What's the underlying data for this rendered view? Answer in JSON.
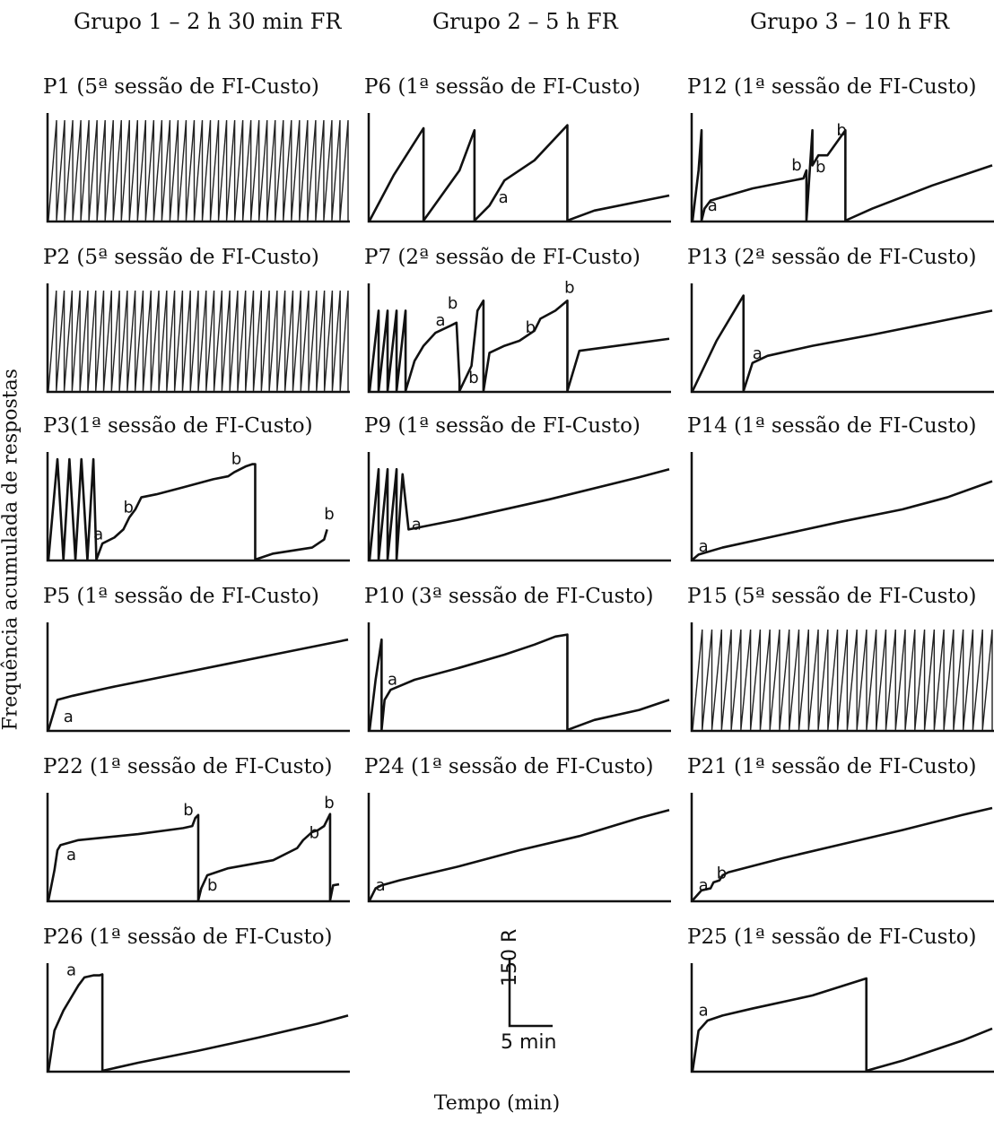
{
  "columns": [
    "Grupo 1 – 2 h 30 min FR",
    "Grupo 2 – 5 h FR",
    "Grupo 3 – 10 h FR"
  ],
  "ylabel": "Frequência acumulada de respostas",
  "xlabel": "Tempo (min)",
  "scale": {
    "response_label": "150 R",
    "time_label": "5 min"
  },
  "chart_data": [
    {
      "type": "line",
      "title": "P1 (5ª sessão de FI-Custo)",
      "column": 0,
      "row": 0,
      "pattern": "dense",
      "resets": 37
    },
    {
      "type": "line",
      "title": "P2 (5ª sessão de FI-Custo)",
      "column": 0,
      "row": 1,
      "pattern": "dense",
      "resets": 38
    },
    {
      "type": "line",
      "title": "P3(1ª sessão de FI-Custo)",
      "column": 0,
      "row": 2,
      "pattern": "mixed",
      "x": [
        0,
        0.03,
        0.05,
        0.07,
        0.09,
        0.11,
        0.13,
        0.15,
        0.16,
        0.18,
        0.22,
        0.25,
        0.27,
        0.29,
        0.31,
        0.36,
        0.45,
        0.55,
        0.6,
        0.62,
        0.66,
        0.68,
        0.69,
        0.69,
        0.75,
        0.88,
        0.92,
        0.93
      ],
      "y": [
        0,
        1,
        0,
        1,
        0,
        1,
        0,
        1,
        0,
        0.16,
        0.22,
        0.3,
        0.42,
        0.5,
        0.62,
        0.65,
        0.72,
        0.8,
        0.83,
        0.87,
        0.93,
        0.95,
        0.95,
        0,
        0.06,
        0.12,
        0.2,
        0.3
      ],
      "annotations": [
        {
          "text": "a",
          "x": 0.15,
          "y": 0.2
        },
        {
          "text": "b",
          "x": 0.25,
          "y": 0.47
        },
        {
          "text": "b",
          "x": 0.61,
          "y": 0.95
        },
        {
          "text": "b",
          "x": 0.92,
          "y": 0.4
        }
      ]
    },
    {
      "type": "line",
      "title": "P5 (1ª sessão de FI-Custo)",
      "column": 0,
      "row": 3,
      "pattern": "curve",
      "x": [
        0,
        0.01,
        0.02,
        0.03,
        0.08,
        0.2,
        0.4,
        0.6,
        0.8,
        1
      ],
      "y": [
        0,
        0.1,
        0.2,
        0.3,
        0.34,
        0.42,
        0.54,
        0.66,
        0.78,
        0.9
      ],
      "annotations": [
        {
          "text": "a",
          "x": 0.05,
          "y": 0.08
        }
      ]
    },
    {
      "type": "line",
      "title": "P22 (1ª sessão de FI-Custo)",
      "column": 0,
      "row": 4,
      "pattern": "mixed",
      "x": [
        0,
        0.02,
        0.03,
        0.04,
        0.1,
        0.3,
        0.45,
        0.48,
        0.49,
        0.5,
        0.5,
        0.51,
        0.53,
        0.6,
        0.75,
        0.83,
        0.85,
        0.88,
        0.9,
        0.92,
        0.94,
        0.94,
        0.95,
        0.97
      ],
      "y": [
        0,
        0.3,
        0.5,
        0.55,
        0.6,
        0.66,
        0.72,
        0.74,
        0.82,
        0.85,
        0,
        0.12,
        0.25,
        0.32,
        0.4,
        0.52,
        0.6,
        0.68,
        0.7,
        0.74,
        0.86,
        0,
        0.15,
        0.16
      ],
      "annotations": [
        {
          "text": "a",
          "x": 0.06,
          "y": 0.4
        },
        {
          "text": "b",
          "x": 0.45,
          "y": 0.85
        },
        {
          "text": "b",
          "x": 0.53,
          "y": 0.1
        },
        {
          "text": "b",
          "x": 0.87,
          "y": 0.62
        },
        {
          "text": "b",
          "x": 0.92,
          "y": 0.92
        }
      ]
    },
    {
      "type": "line",
      "title": "P26 (1ª sessão de FI-Custo)",
      "column": 0,
      "row": 5,
      "pattern": "mixed",
      "x": [
        0,
        0.02,
        0.05,
        0.08,
        0.1,
        0.12,
        0.15,
        0.17,
        0.18,
        0.18,
        0.3,
        0.5,
        0.7,
        0.9,
        1
      ],
      "y": [
        0,
        0.4,
        0.6,
        0.75,
        0.85,
        0.93,
        0.95,
        0.95,
        0.96,
        0,
        0.08,
        0.2,
        0.33,
        0.47,
        0.55
      ],
      "annotations": [
        {
          "text": "a",
          "x": 0.06,
          "y": 0.95
        }
      ]
    },
    {
      "type": "line",
      "title": "P6 (1ª sessão de FI-Custo)",
      "column": 1,
      "row": 0,
      "pattern": "mixed",
      "x": [
        0,
        0.08,
        0.18,
        0.18,
        0.3,
        0.35,
        0.35,
        0.4,
        0.45,
        0.55,
        0.66,
        0.66,
        0.75,
        1
      ],
      "y": [
        0,
        0.45,
        0.92,
        0,
        0.5,
        0.9,
        0,
        0.15,
        0.4,
        0.6,
        0.95,
        0,
        0.1,
        0.25
      ],
      "annotations": [
        {
          "text": "a",
          "x": 0.43,
          "y": 0.18
        }
      ]
    },
    {
      "type": "line",
      "title": "P7 (2ª sessão de FI-Custo)",
      "column": 1,
      "row": 1,
      "pattern": "mixed",
      "x": [
        0,
        0.03,
        0.03,
        0.06,
        0.06,
        0.09,
        0.09,
        0.12,
        0.12,
        0.15,
        0.18,
        0.22,
        0.27,
        0.29,
        0.3,
        0.3,
        0.34,
        0.36,
        0.38,
        0.38,
        0.4,
        0.45,
        0.5,
        0.55,
        0.57,
        0.62,
        0.66,
        0.66,
        0.7,
        1
      ],
      "y": [
        0,
        0.8,
        0,
        0.8,
        0,
        0.8,
        0,
        0.8,
        0,
        0.3,
        0.45,
        0.58,
        0.65,
        0.68,
        0.1,
        0,
        0.25,
        0.8,
        0.9,
        0,
        0.38,
        0.45,
        0.5,
        0.6,
        0.72,
        0.8,
        0.9,
        0,
        0.4,
        0.52
      ],
      "annotations": [
        {
          "text": "a",
          "x": 0.22,
          "y": 0.65
        },
        {
          "text": "b",
          "x": 0.26,
          "y": 0.82
        },
        {
          "text": "b",
          "x": 0.33,
          "y": 0.08
        },
        {
          "text": "b",
          "x": 0.52,
          "y": 0.58
        },
        {
          "text": "b",
          "x": 0.65,
          "y": 0.98
        }
      ]
    },
    {
      "type": "line",
      "title": "P9 (1ª sessão de FI-Custo)",
      "column": 1,
      "row": 2,
      "pattern": "mixed",
      "x": [
        0,
        0.03,
        0.03,
        0.06,
        0.06,
        0.09,
        0.09,
        0.11,
        0.13,
        0.3,
        0.6,
        0.9,
        1
      ],
      "y": [
        0,
        0.9,
        0,
        0.9,
        0,
        0.9,
        0,
        0.85,
        0.3,
        0.4,
        0.6,
        0.82,
        0.9
      ],
      "annotations": [
        {
          "text": "a",
          "x": 0.14,
          "y": 0.3
        }
      ]
    },
    {
      "type": "line",
      "title": "P10 (3ª sessão de FI-Custo)",
      "column": 1,
      "row": 3,
      "pattern": "mixed",
      "x": [
        0,
        0.02,
        0.04,
        0.04,
        0.05,
        0.07,
        0.15,
        0.3,
        0.45,
        0.55,
        0.62,
        0.66,
        0.66,
        0.75,
        0.9,
        1
      ],
      "y": [
        0,
        0.5,
        0.9,
        0,
        0.3,
        0.4,
        0.5,
        0.62,
        0.75,
        0.85,
        0.93,
        0.95,
        0,
        0.1,
        0.2,
        0.3
      ],
      "annotations": [
        {
          "text": "a",
          "x": 0.06,
          "y": 0.45
        }
      ]
    },
    {
      "type": "line",
      "title": "P24 (1ª sessão de FI-Custo)",
      "column": 1,
      "row": 4,
      "pattern": "curve",
      "x": [
        0,
        0.02,
        0.04,
        0.1,
        0.3,
        0.5,
        0.7,
        0.9,
        1
      ],
      "y": [
        0,
        0.12,
        0.15,
        0.2,
        0.34,
        0.5,
        0.64,
        0.82,
        0.9
      ],
      "annotations": [
        {
          "text": "a",
          "x": 0.02,
          "y": 0.1
        }
      ]
    },
    {
      "type": "line",
      "title": "P12 (1ª sessão de FI-Custo)",
      "column": 2,
      "row": 0,
      "pattern": "mixed",
      "x": [
        0,
        0.02,
        0.03,
        0.03,
        0.04,
        0.06,
        0.2,
        0.37,
        0.38,
        0.38,
        0.4,
        0.4,
        0.42,
        0.45,
        0.51,
        0.51,
        0.6,
        0.8,
        1
      ],
      "y": [
        0,
        0.5,
        0.9,
        0,
        0.12,
        0.2,
        0.32,
        0.42,
        0.5,
        0,
        0.9,
        0.55,
        0.65,
        0.65,
        0.9,
        0,
        0.12,
        0.35,
        0.55
      ],
      "annotations": [
        {
          "text": "a",
          "x": 0.05,
          "y": 0.1
        },
        {
          "text": "b",
          "x": 0.33,
          "y": 0.5
        },
        {
          "text": "b",
          "x": 0.41,
          "y": 0.48
        },
        {
          "text": "b",
          "x": 0.48,
          "y": 0.85
        }
      ]
    },
    {
      "type": "line",
      "title": "P13 (2ª sessão de FI-Custo)",
      "column": 2,
      "row": 1,
      "pattern": "mixed",
      "x": [
        0,
        0.08,
        0.17,
        0.17,
        0.2,
        0.25,
        0.4,
        0.6,
        0.8,
        1
      ],
      "y": [
        0,
        0.5,
        0.95,
        0,
        0.28,
        0.35,
        0.45,
        0.56,
        0.68,
        0.8
      ],
      "annotations": [
        {
          "text": "a",
          "x": 0.2,
          "y": 0.32
        }
      ]
    },
    {
      "type": "line",
      "title": "P14 (1ª sessão de FI-Custo)",
      "column": 2,
      "row": 2,
      "pattern": "curve",
      "x": [
        0,
        0.02,
        0.1,
        0.3,
        0.5,
        0.7,
        0.85,
        1
      ],
      "y": [
        0,
        0.05,
        0.12,
        0.25,
        0.38,
        0.5,
        0.62,
        0.78
      ],
      "annotations": [
        {
          "text": "a",
          "x": 0.02,
          "y": 0.08
        }
      ]
    },
    {
      "type": "line",
      "title": "P15 (5ª sessão de FI-Custo)",
      "column": 2,
      "row": 3,
      "pattern": "dense",
      "resets": 31
    },
    {
      "type": "line",
      "title": "P21 (1ª sessão de FI-Custo)",
      "column": 2,
      "row": 4,
      "pattern": "mixed",
      "x": [
        0,
        0.03,
        0.06,
        0.07,
        0.09,
        0.1,
        0.12,
        0.3,
        0.5,
        0.7,
        0.9,
        1
      ],
      "y": [
        0,
        0.1,
        0.12,
        0.18,
        0.2,
        0.25,
        0.28,
        0.42,
        0.56,
        0.7,
        0.85,
        0.92
      ],
      "annotations": [
        {
          "text": "a",
          "x": 0.02,
          "y": 0.1
        },
        {
          "text": "b",
          "x": 0.08,
          "y": 0.22
        }
      ]
    },
    {
      "type": "line",
      "title": "P25 (1ª sessão de FI-Custo)",
      "column": 2,
      "row": 5,
      "pattern": "mixed",
      "x": [
        0,
        0.02,
        0.05,
        0.1,
        0.2,
        0.4,
        0.58,
        0.58,
        0.7,
        0.9,
        1
      ],
      "y": [
        0,
        0.4,
        0.5,
        0.55,
        0.62,
        0.75,
        0.92,
        0,
        0.1,
        0.3,
        0.42
      ],
      "annotations": [
        {
          "text": "a",
          "x": 0.02,
          "y": 0.55
        }
      ]
    }
  ]
}
